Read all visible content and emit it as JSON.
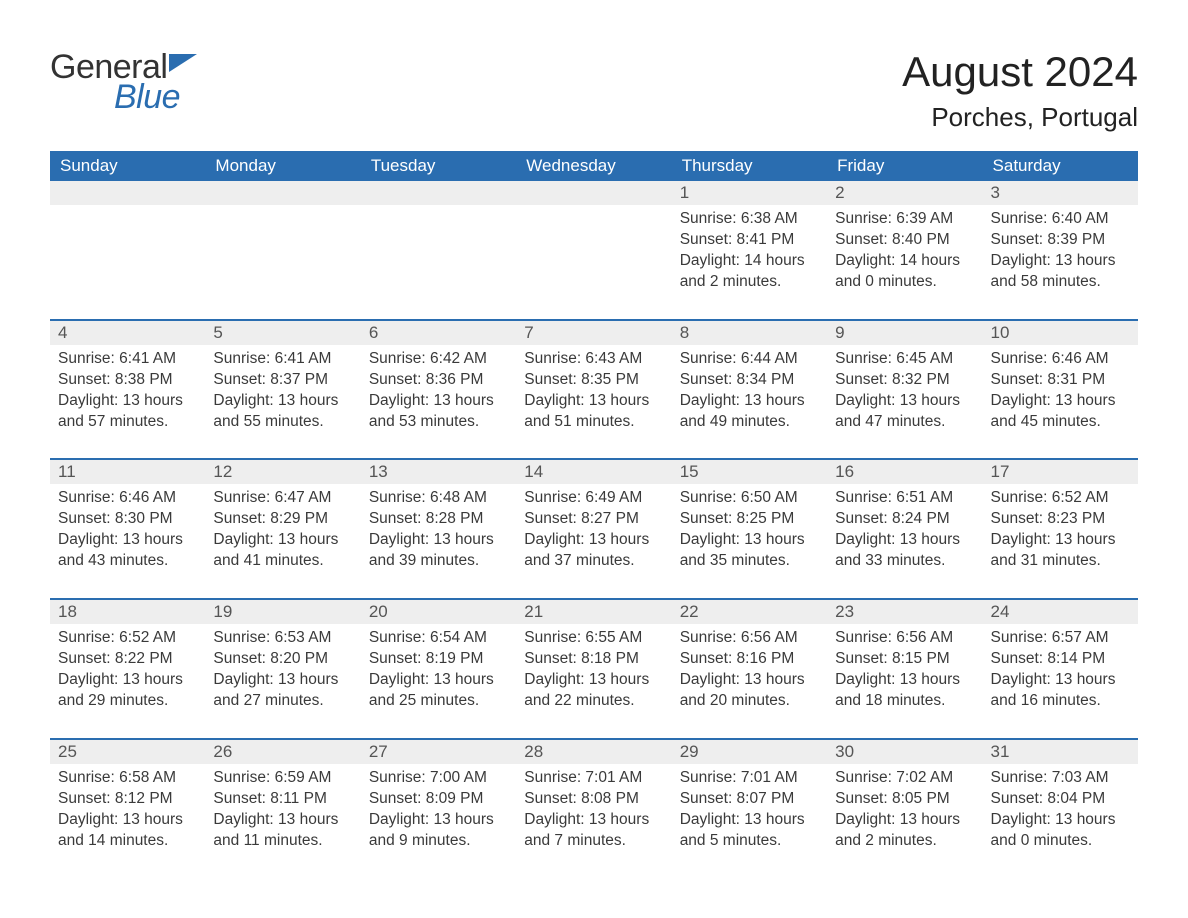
{
  "logo": {
    "word1": "General",
    "word2": "Blue",
    "color_general": "#333333",
    "color_blue": "#2a6db0"
  },
  "title": {
    "month": "August 2024",
    "location": "Porches, Portugal"
  },
  "colors": {
    "header_bg": "#2a6db0",
    "header_text": "#ffffff",
    "daynum_bg": "#eeeeee",
    "daynum_text": "#555555",
    "body_text": "#3a3a3a",
    "page_bg": "#ffffff",
    "week_separator": "#2a6db0"
  },
  "column_headers": [
    "Sunday",
    "Monday",
    "Tuesday",
    "Wednesday",
    "Thursday",
    "Friday",
    "Saturday"
  ],
  "sunrise_label": "Sunrise: ",
  "sunset_label": "Sunset: ",
  "daylight_label": "Daylight: ",
  "weeks": [
    [
      null,
      null,
      null,
      null,
      {
        "day": "1",
        "sunrise": "6:38 AM",
        "sunset": "8:41 PM",
        "daylight": "14 hours and 2 minutes."
      },
      {
        "day": "2",
        "sunrise": "6:39 AM",
        "sunset": "8:40 PM",
        "daylight": "14 hours and 0 minutes."
      },
      {
        "day": "3",
        "sunrise": "6:40 AM",
        "sunset": "8:39 PM",
        "daylight": "13 hours and 58 minutes."
      }
    ],
    [
      {
        "day": "4",
        "sunrise": "6:41 AM",
        "sunset": "8:38 PM",
        "daylight": "13 hours and 57 minutes."
      },
      {
        "day": "5",
        "sunrise": "6:41 AM",
        "sunset": "8:37 PM",
        "daylight": "13 hours and 55 minutes."
      },
      {
        "day": "6",
        "sunrise": "6:42 AM",
        "sunset": "8:36 PM",
        "daylight": "13 hours and 53 minutes."
      },
      {
        "day": "7",
        "sunrise": "6:43 AM",
        "sunset": "8:35 PM",
        "daylight": "13 hours and 51 minutes."
      },
      {
        "day": "8",
        "sunrise": "6:44 AM",
        "sunset": "8:34 PM",
        "daylight": "13 hours and 49 minutes."
      },
      {
        "day": "9",
        "sunrise": "6:45 AM",
        "sunset": "8:32 PM",
        "daylight": "13 hours and 47 minutes."
      },
      {
        "day": "10",
        "sunrise": "6:46 AM",
        "sunset": "8:31 PM",
        "daylight": "13 hours and 45 minutes."
      }
    ],
    [
      {
        "day": "11",
        "sunrise": "6:46 AM",
        "sunset": "8:30 PM",
        "daylight": "13 hours and 43 minutes."
      },
      {
        "day": "12",
        "sunrise": "6:47 AM",
        "sunset": "8:29 PM",
        "daylight": "13 hours and 41 minutes."
      },
      {
        "day": "13",
        "sunrise": "6:48 AM",
        "sunset": "8:28 PM",
        "daylight": "13 hours and 39 minutes."
      },
      {
        "day": "14",
        "sunrise": "6:49 AM",
        "sunset": "8:27 PM",
        "daylight": "13 hours and 37 minutes."
      },
      {
        "day": "15",
        "sunrise": "6:50 AM",
        "sunset": "8:25 PM",
        "daylight": "13 hours and 35 minutes."
      },
      {
        "day": "16",
        "sunrise": "6:51 AM",
        "sunset": "8:24 PM",
        "daylight": "13 hours and 33 minutes."
      },
      {
        "day": "17",
        "sunrise": "6:52 AM",
        "sunset": "8:23 PM",
        "daylight": "13 hours and 31 minutes."
      }
    ],
    [
      {
        "day": "18",
        "sunrise": "6:52 AM",
        "sunset": "8:22 PM",
        "daylight": "13 hours and 29 minutes."
      },
      {
        "day": "19",
        "sunrise": "6:53 AM",
        "sunset": "8:20 PM",
        "daylight": "13 hours and 27 minutes."
      },
      {
        "day": "20",
        "sunrise": "6:54 AM",
        "sunset": "8:19 PM",
        "daylight": "13 hours and 25 minutes."
      },
      {
        "day": "21",
        "sunrise": "6:55 AM",
        "sunset": "8:18 PM",
        "daylight": "13 hours and 22 minutes."
      },
      {
        "day": "22",
        "sunrise": "6:56 AM",
        "sunset": "8:16 PM",
        "daylight": "13 hours and 20 minutes."
      },
      {
        "day": "23",
        "sunrise": "6:56 AM",
        "sunset": "8:15 PM",
        "daylight": "13 hours and 18 minutes."
      },
      {
        "day": "24",
        "sunrise": "6:57 AM",
        "sunset": "8:14 PM",
        "daylight": "13 hours and 16 minutes."
      }
    ],
    [
      {
        "day": "25",
        "sunrise": "6:58 AM",
        "sunset": "8:12 PM",
        "daylight": "13 hours and 14 minutes."
      },
      {
        "day": "26",
        "sunrise": "6:59 AM",
        "sunset": "8:11 PM",
        "daylight": "13 hours and 11 minutes."
      },
      {
        "day": "27",
        "sunrise": "7:00 AM",
        "sunset": "8:09 PM",
        "daylight": "13 hours and 9 minutes."
      },
      {
        "day": "28",
        "sunrise": "7:01 AM",
        "sunset": "8:08 PM",
        "daylight": "13 hours and 7 minutes."
      },
      {
        "day": "29",
        "sunrise": "7:01 AM",
        "sunset": "8:07 PM",
        "daylight": "13 hours and 5 minutes."
      },
      {
        "day": "30",
        "sunrise": "7:02 AM",
        "sunset": "8:05 PM",
        "daylight": "13 hours and 2 minutes."
      },
      {
        "day": "31",
        "sunrise": "7:03 AM",
        "sunset": "8:04 PM",
        "daylight": "13 hours and 0 minutes."
      }
    ]
  ]
}
